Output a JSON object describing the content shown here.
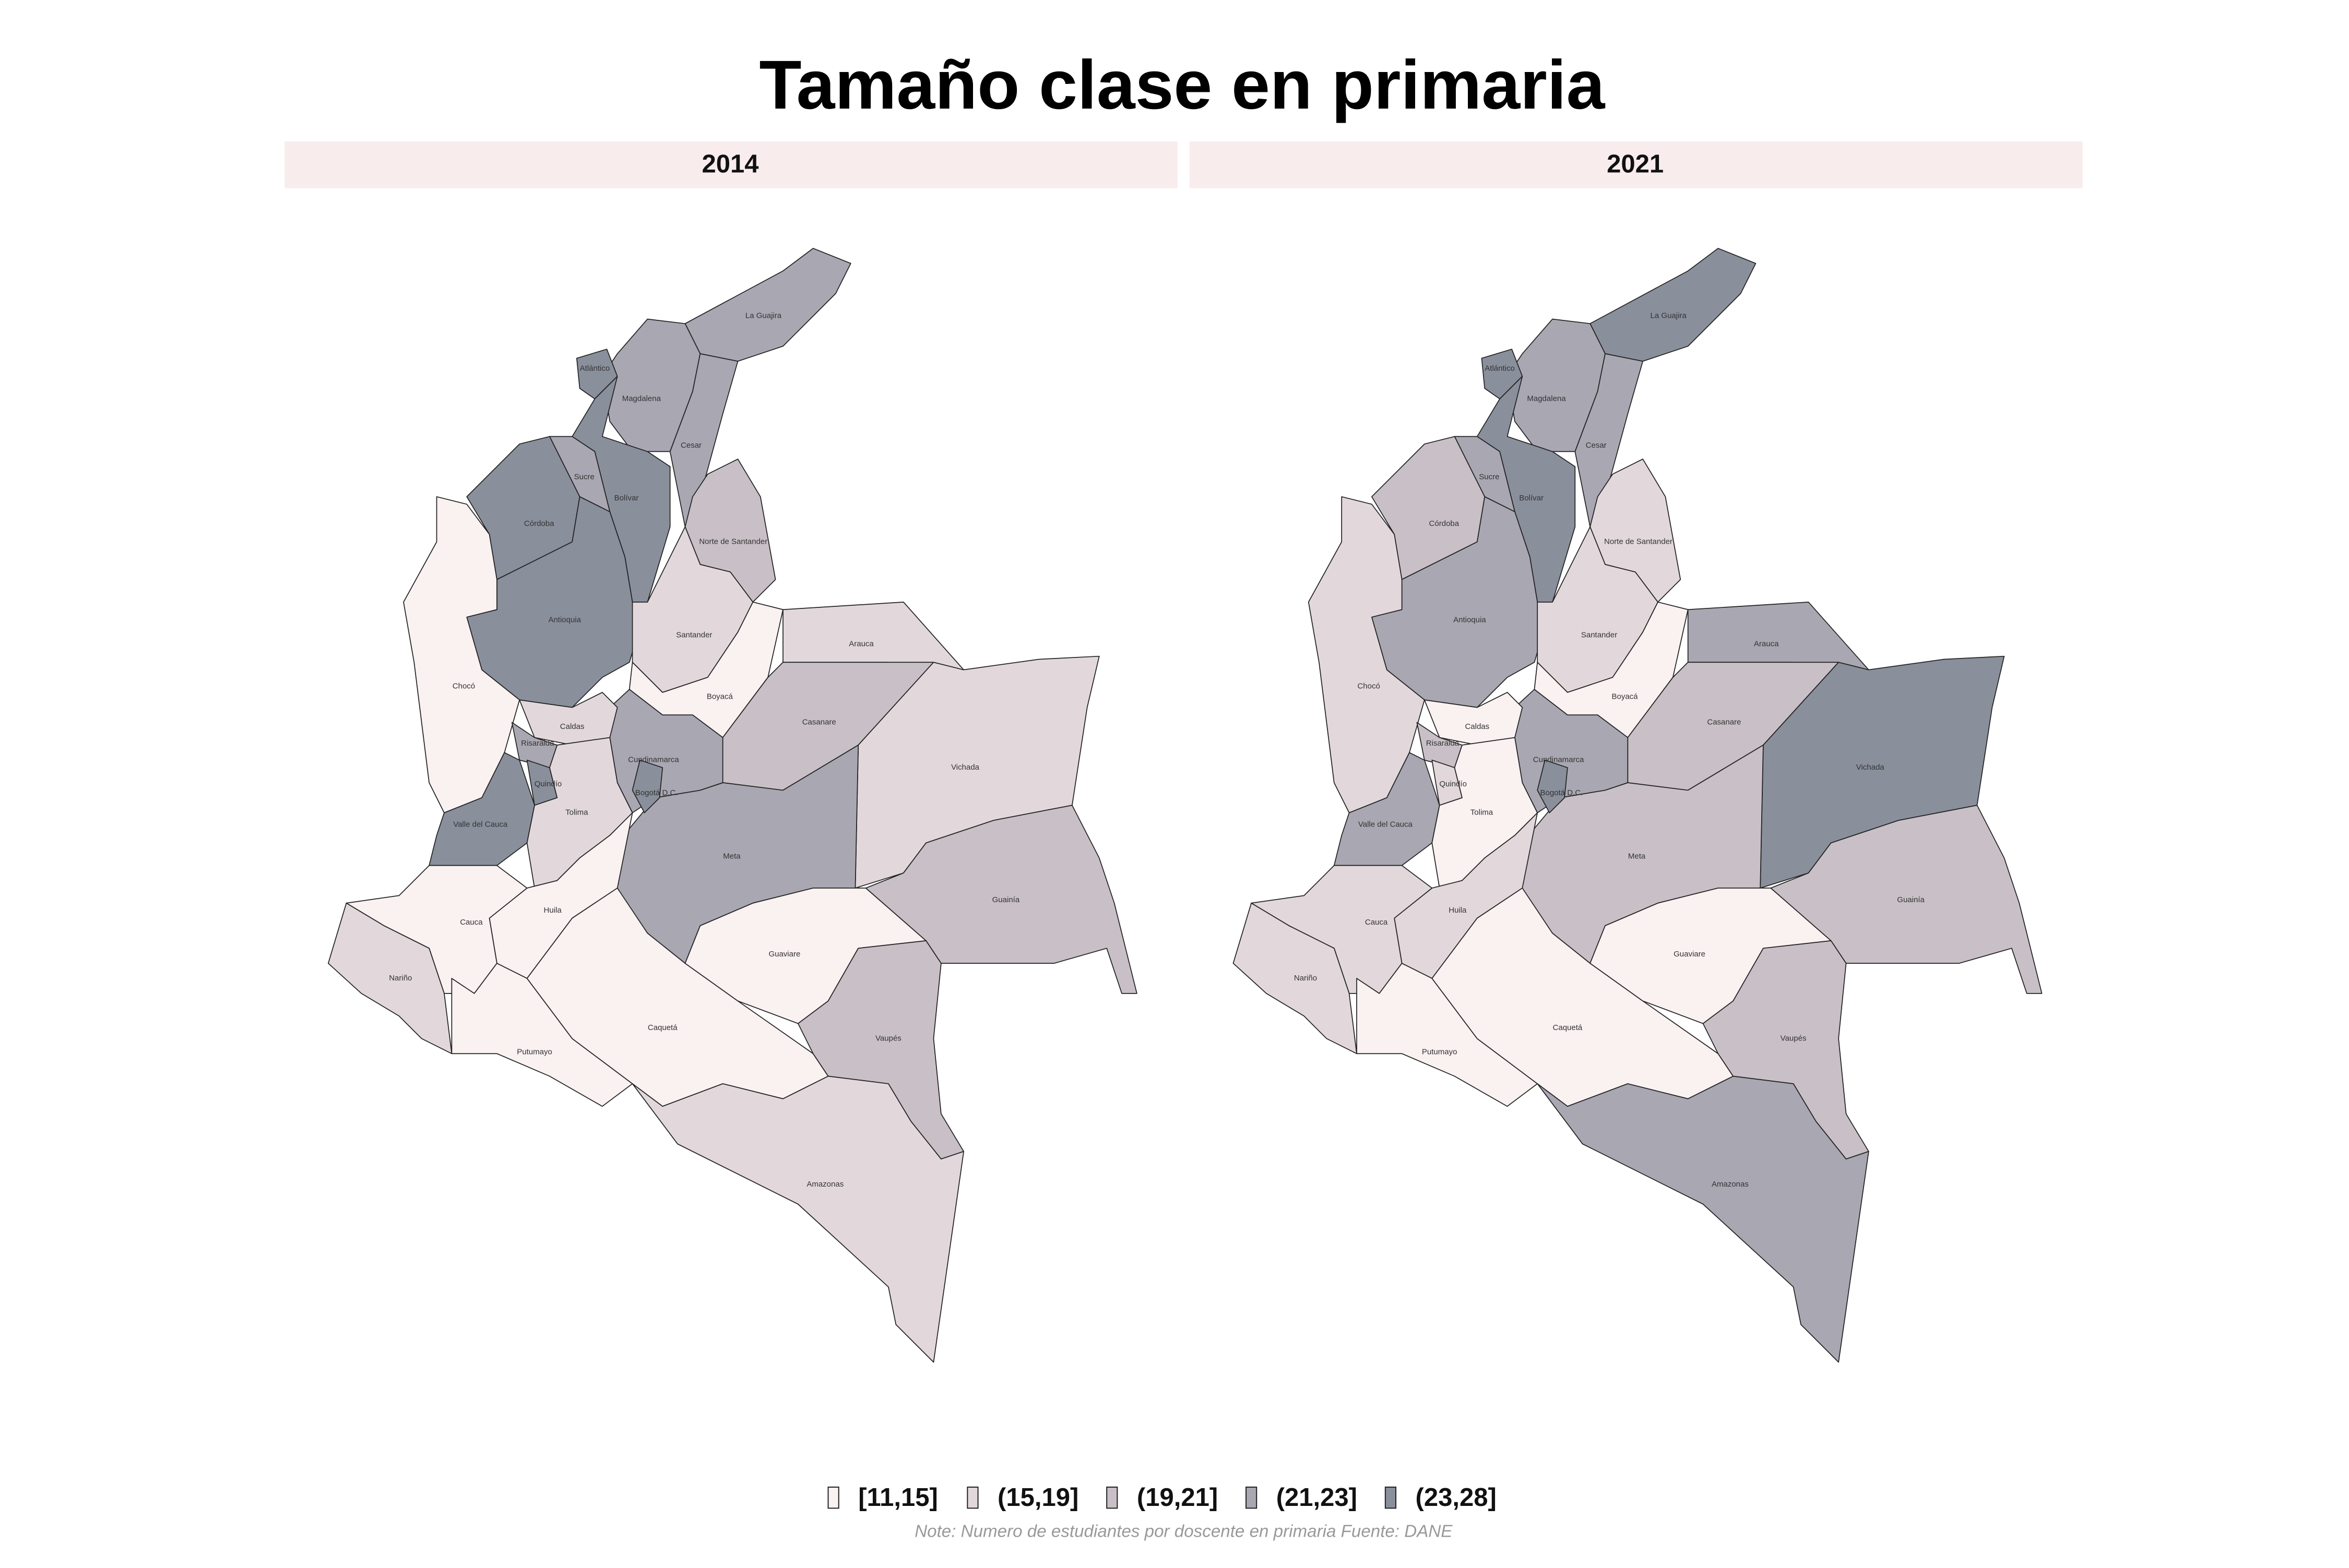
{
  "title": "Tamaño clase en primaria",
  "legend": {
    "items": [
      {
        "label": "[11,15]",
        "color": "#faf1f1"
      },
      {
        "label": "(15,19]",
        "color": "#e2d8dc"
      },
      {
        "label": "(19,21]",
        "color": "#c8c0c6"
      },
      {
        "label": "(21,23]",
        "color": "#a8a7b2"
      },
      {
        "label": "(23,28]",
        "color": "#8a8f9c"
      }
    ]
  },
  "note": "Note: Numero de estudiantes por doscente en primaria Fuente: DANE",
  "facets": [
    {
      "year": "2014",
      "regions": [
        {
          "name": "La Guajira",
          "bin": "(21,23]"
        },
        {
          "name": "Magdalena",
          "bin": "(21,23]"
        },
        {
          "name": "Cesar",
          "bin": "(21,23]"
        },
        {
          "name": "Atlántico",
          "bin": "(23,28]"
        },
        {
          "name": "Bolívar",
          "bin": "(23,28]"
        },
        {
          "name": "Sucre",
          "bin": "(21,23]"
        },
        {
          "name": "Córdoba",
          "bin": "(23,28]"
        },
        {
          "name": "Antioquia",
          "bin": "(23,28]"
        },
        {
          "name": "Chocó",
          "bin": "[11,15]"
        },
        {
          "name": "Norte de Santander",
          "bin": "(19,21]"
        },
        {
          "name": "Santander",
          "bin": "(15,19]"
        },
        {
          "name": "Boyacá",
          "bin": "[11,15]"
        },
        {
          "name": "Arauca",
          "bin": "(15,19]"
        },
        {
          "name": "Casanare",
          "bin": "(19,21]"
        },
        {
          "name": "Vichada",
          "bin": "(15,19]"
        },
        {
          "name": "Meta",
          "bin": "(21,23]"
        },
        {
          "name": "Cundinamarca",
          "bin": "(21,23]"
        },
        {
          "name": "Bogotá D.C.",
          "bin": "(23,28]"
        },
        {
          "name": "Caldas",
          "bin": "(15,19]"
        },
        {
          "name": "Risaralda",
          "bin": "(21,23]"
        },
        {
          "name": "Quindío",
          "bin": "(23,28]"
        },
        {
          "name": "Valle del Cauca",
          "bin": "(23,28]"
        },
        {
          "name": "Tolima",
          "bin": "(15,19]"
        },
        {
          "name": "Huila",
          "bin": "[11,15]"
        },
        {
          "name": "Cauca",
          "bin": "[11,15]"
        },
        {
          "name": "Nariño",
          "bin": "(15,19]"
        },
        {
          "name": "Putumayo",
          "bin": "[11,15]"
        },
        {
          "name": "Caquetá",
          "bin": "[11,15]"
        },
        {
          "name": "Guaviare",
          "bin": "[11,15]"
        },
        {
          "name": "Guainía",
          "bin": "(19,21]"
        },
        {
          "name": "Vaupés",
          "bin": "(19,21]"
        },
        {
          "name": "Amazonas",
          "bin": "(15,19]"
        }
      ]
    },
    {
      "year": "2021",
      "regions": [
        {
          "name": "La Guajira",
          "bin": "(23,28]"
        },
        {
          "name": "Magdalena",
          "bin": "(21,23]"
        },
        {
          "name": "Cesar",
          "bin": "(21,23]"
        },
        {
          "name": "Atlántico",
          "bin": "(23,28]"
        },
        {
          "name": "Bolívar",
          "bin": "(23,28]"
        },
        {
          "name": "Sucre",
          "bin": "(21,23]"
        },
        {
          "name": "Córdoba",
          "bin": "(19,21]"
        },
        {
          "name": "Antioquia",
          "bin": "(21,23]"
        },
        {
          "name": "Chocó",
          "bin": "(15,19]"
        },
        {
          "name": "Norte de Santander",
          "bin": "(15,19]"
        },
        {
          "name": "Santander",
          "bin": "(15,19]"
        },
        {
          "name": "Boyacá",
          "bin": "[11,15]"
        },
        {
          "name": "Arauca",
          "bin": "(21,23]"
        },
        {
          "name": "Casanare",
          "bin": "(19,21]"
        },
        {
          "name": "Vichada",
          "bin": "(23,28]"
        },
        {
          "name": "Meta",
          "bin": "(19,21]"
        },
        {
          "name": "Cundinamarca",
          "bin": "(21,23]"
        },
        {
          "name": "Bogotá D.C.",
          "bin": "(23,28]"
        },
        {
          "name": "Caldas",
          "bin": "[11,15]"
        },
        {
          "name": "Risaralda",
          "bin": "(19,21]"
        },
        {
          "name": "Quindío",
          "bin": "(15,19]"
        },
        {
          "name": "Valle del Cauca",
          "bin": "(21,23]"
        },
        {
          "name": "Tolima",
          "bin": "[11,15]"
        },
        {
          "name": "Huila",
          "bin": "(15,19]"
        },
        {
          "name": "Cauca",
          "bin": "(15,19]"
        },
        {
          "name": "Nariño",
          "bin": "(15,19]"
        },
        {
          "name": "Putumayo",
          "bin": "[11,15]"
        },
        {
          "name": "Caquetá",
          "bin": "[11,15]"
        },
        {
          "name": "Guaviare",
          "bin": "[11,15]"
        },
        {
          "name": "Guainía",
          "bin": "(19,21]"
        },
        {
          "name": "Vaupés",
          "bin": "(19,21]"
        },
        {
          "name": "Amazonas",
          "bin": "(21,23]"
        }
      ]
    }
  ]
}
